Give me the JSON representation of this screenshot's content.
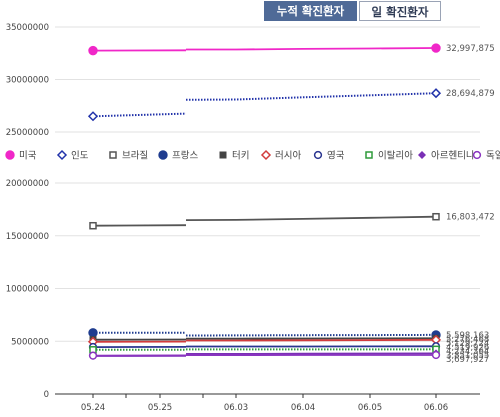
{
  "tabs": [
    {
      "label": "누적 확진환자",
      "active": true
    },
    {
      "label": "일 확진환자",
      "active": false
    }
  ],
  "chart_data": [
    {
      "type": "line",
      "x": [
        "05.24",
        "05.25",
        "06.03",
        "06.04",
        "06.05",
        "06.06"
      ],
      "ylim": [
        25000000,
        35000000
      ],
      "yticks": [
        "25000000",
        "30000000",
        "35000000"
      ],
      "grid": true,
      "series": [
        {
          "name": "미국",
          "color": "#f027c8",
          "dashed": false,
          "marker": "filled-circle",
          "values": [
            32750000,
            32780000,
            32860000,
            32910000,
            32950000,
            32997875
          ],
          "end_label": "32,997,875"
        },
        {
          "name": "인도",
          "color": "#2233aa",
          "dashed": true,
          "marker": "open-diamond",
          "values": [
            26500000,
            26750000,
            28100000,
            28300000,
            28500000,
            28694879
          ],
          "end_label": "28,694,879"
        }
      ]
    },
    {
      "type": "line",
      "x": [
        "05.24",
        "05.25",
        "06.03",
        "06.04",
        "06.05",
        "06.06"
      ],
      "ylim": [
        0,
        20000000
      ],
      "yticks": [
        "0",
        "5000000",
        "10000000",
        "15000000",
        "20000000"
      ],
      "grid": true,
      "series": [
        {
          "name": "브라질",
          "color": "#555555",
          "dashed": false,
          "marker": "open-square",
          "values": [
            15950000,
            16000000,
            16500000,
            16600000,
            16700000,
            16803472
          ],
          "end_label": "16,803,472"
        },
        {
          "name": "프랑스",
          "color": "#1f3c8f",
          "dashed": true,
          "marker": "filled-circle",
          "values": [
            5800000,
            5800000,
            5550000,
            5570000,
            5580000,
            5598163
          ],
          "end_label": "5,598,163"
        },
        {
          "name": "터키",
          "color": "#444444",
          "dashed": false,
          "marker": "filled-square",
          "values": [
            5150000,
            5170000,
            5250000,
            5260000,
            5270000,
            5276468
          ],
          "end_label": "5,276,468"
        },
        {
          "name": "러시아",
          "color": "#d23c3c",
          "dashed": false,
          "marker": "open-diamond",
          "values": [
            4950000,
            4970000,
            5070000,
            5090000,
            5110000,
            5129724
          ],
          "end_label": "5,129,724"
        },
        {
          "name": "영국",
          "color": "#2a3590",
          "dashed": false,
          "marker": "open-circle",
          "values": [
            4450000,
            4460000,
            4500000,
            4505000,
            4510000,
            4519926
          ],
          "end_label": "4,519,926"
        },
        {
          "name": "이탈리아",
          "color": "#2e9a3a",
          "dashed": true,
          "marker": "open-square",
          "values": [
            4190000,
            4200000,
            4225000,
            4228000,
            4231000,
            4234364
          ],
          "end_label": "4,234,364"
        },
        {
          "name": "아르헨티나",
          "color": "#7a2fb5",
          "dashed": false,
          "marker": "filled-diamond",
          "values": [
            3600000,
            3620000,
            3800000,
            3820000,
            3840000,
            3851055
          ],
          "end_label": "3,851,055"
        },
        {
          "name": "독일",
          "color": "#8a35c0",
          "dashed": false,
          "marker": "open-circle",
          "values": [
            3640000,
            3660000,
            3690000,
            3693000,
            3695000,
            3697927
          ],
          "end_label": "3,697,927"
        }
      ]
    }
  ]
}
